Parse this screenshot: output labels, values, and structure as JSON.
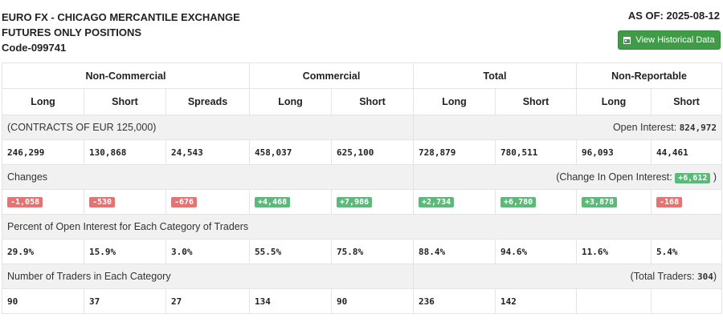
{
  "header": {
    "title_line1": "EURO FX - CHICAGO MERCANTILE EXCHANGE",
    "title_line2": "FUTURES ONLY POSITIONS",
    "code": "Code-099741",
    "as_of": "AS OF: 2025-08-12",
    "history_button": "View Historical Data"
  },
  "groups": [
    "Non-Commercial",
    "Commercial",
    "Total",
    "Non-Reportable"
  ],
  "subheaders": [
    "Long",
    "Short",
    "Spreads",
    "Long",
    "Short",
    "Long",
    "Short",
    "Long",
    "Short"
  ],
  "contracts": {
    "label": "(CONTRACTS OF EUR 125,000)",
    "open_interest_label": "Open Interest:",
    "open_interest_value": "824,972",
    "values": [
      "246,299",
      "130,868",
      "24,543",
      "458,037",
      "625,100",
      "728,879",
      "780,511",
      "96,093",
      "44,461"
    ]
  },
  "changes": {
    "label": "Changes",
    "oi_change_label": "(Change In Open Interest:",
    "oi_change_value": "+6,612",
    "oi_change_close": ")",
    "values": [
      "-1,058",
      "-530",
      "-676",
      "+4,468",
      "+7,986",
      "+2,734",
      "+6,780",
      "+3,878",
      "-168"
    ]
  },
  "percent": {
    "label": "Percent of Open Interest for Each Category of Traders",
    "values": [
      "29.9%",
      "15.9%",
      "3.0%",
      "55.5%",
      "75.8%",
      "88.4%",
      "94.6%",
      "11.6%",
      "5.4%"
    ]
  },
  "traders": {
    "label": "Number of Traders in Each Category",
    "total_label": "(Total Traders:",
    "total_value": "304",
    "total_close": ")",
    "values": [
      "90",
      "37",
      "27",
      "134",
      "90",
      "236",
      "142",
      "",
      ""
    ]
  },
  "colors": {
    "button": "#3f9b45",
    "negative": "#e57373",
    "positive": "#5cb97a"
  }
}
